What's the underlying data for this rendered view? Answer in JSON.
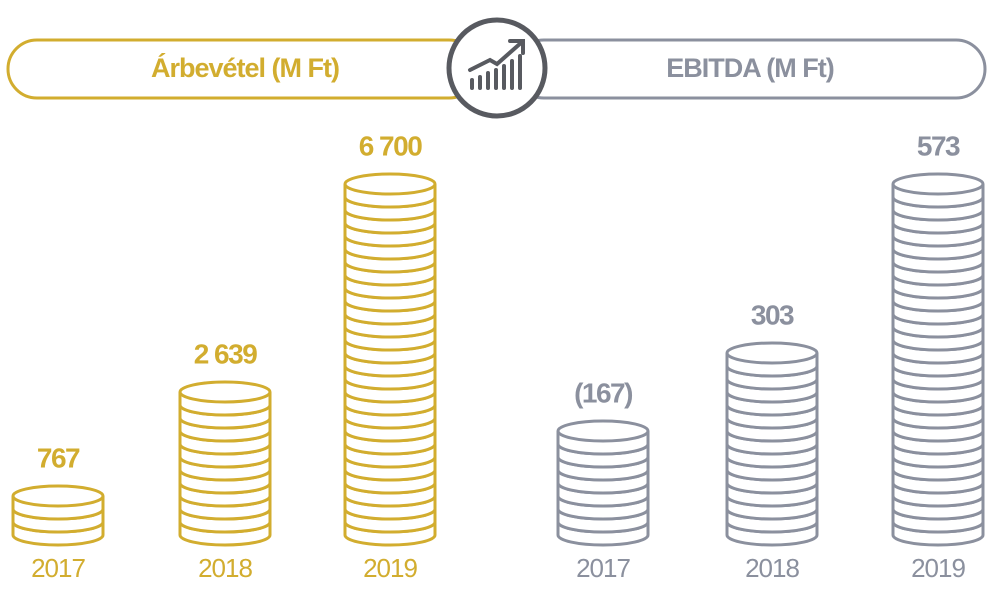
{
  "chart_data": [
    {
      "type": "coin-stack",
      "title": "Árbevétel (M Ft)",
      "color": "#d2ad2f",
      "categories": [
        "2017",
        "2018",
        "2019"
      ],
      "values": [
        767,
        2639,
        6700
      ],
      "value_labels": [
        "767",
        "2 639",
        "6 700"
      ]
    },
    {
      "type": "coin-stack",
      "title": "EBITDA (M Ft)",
      "color": "#8b909e",
      "categories": [
        "2017",
        "2018",
        "2019"
      ],
      "values": [
        -167,
        303,
        573
      ],
      "value_labels": [
        "(167)",
        "303",
        "573"
      ]
    }
  ]
}
